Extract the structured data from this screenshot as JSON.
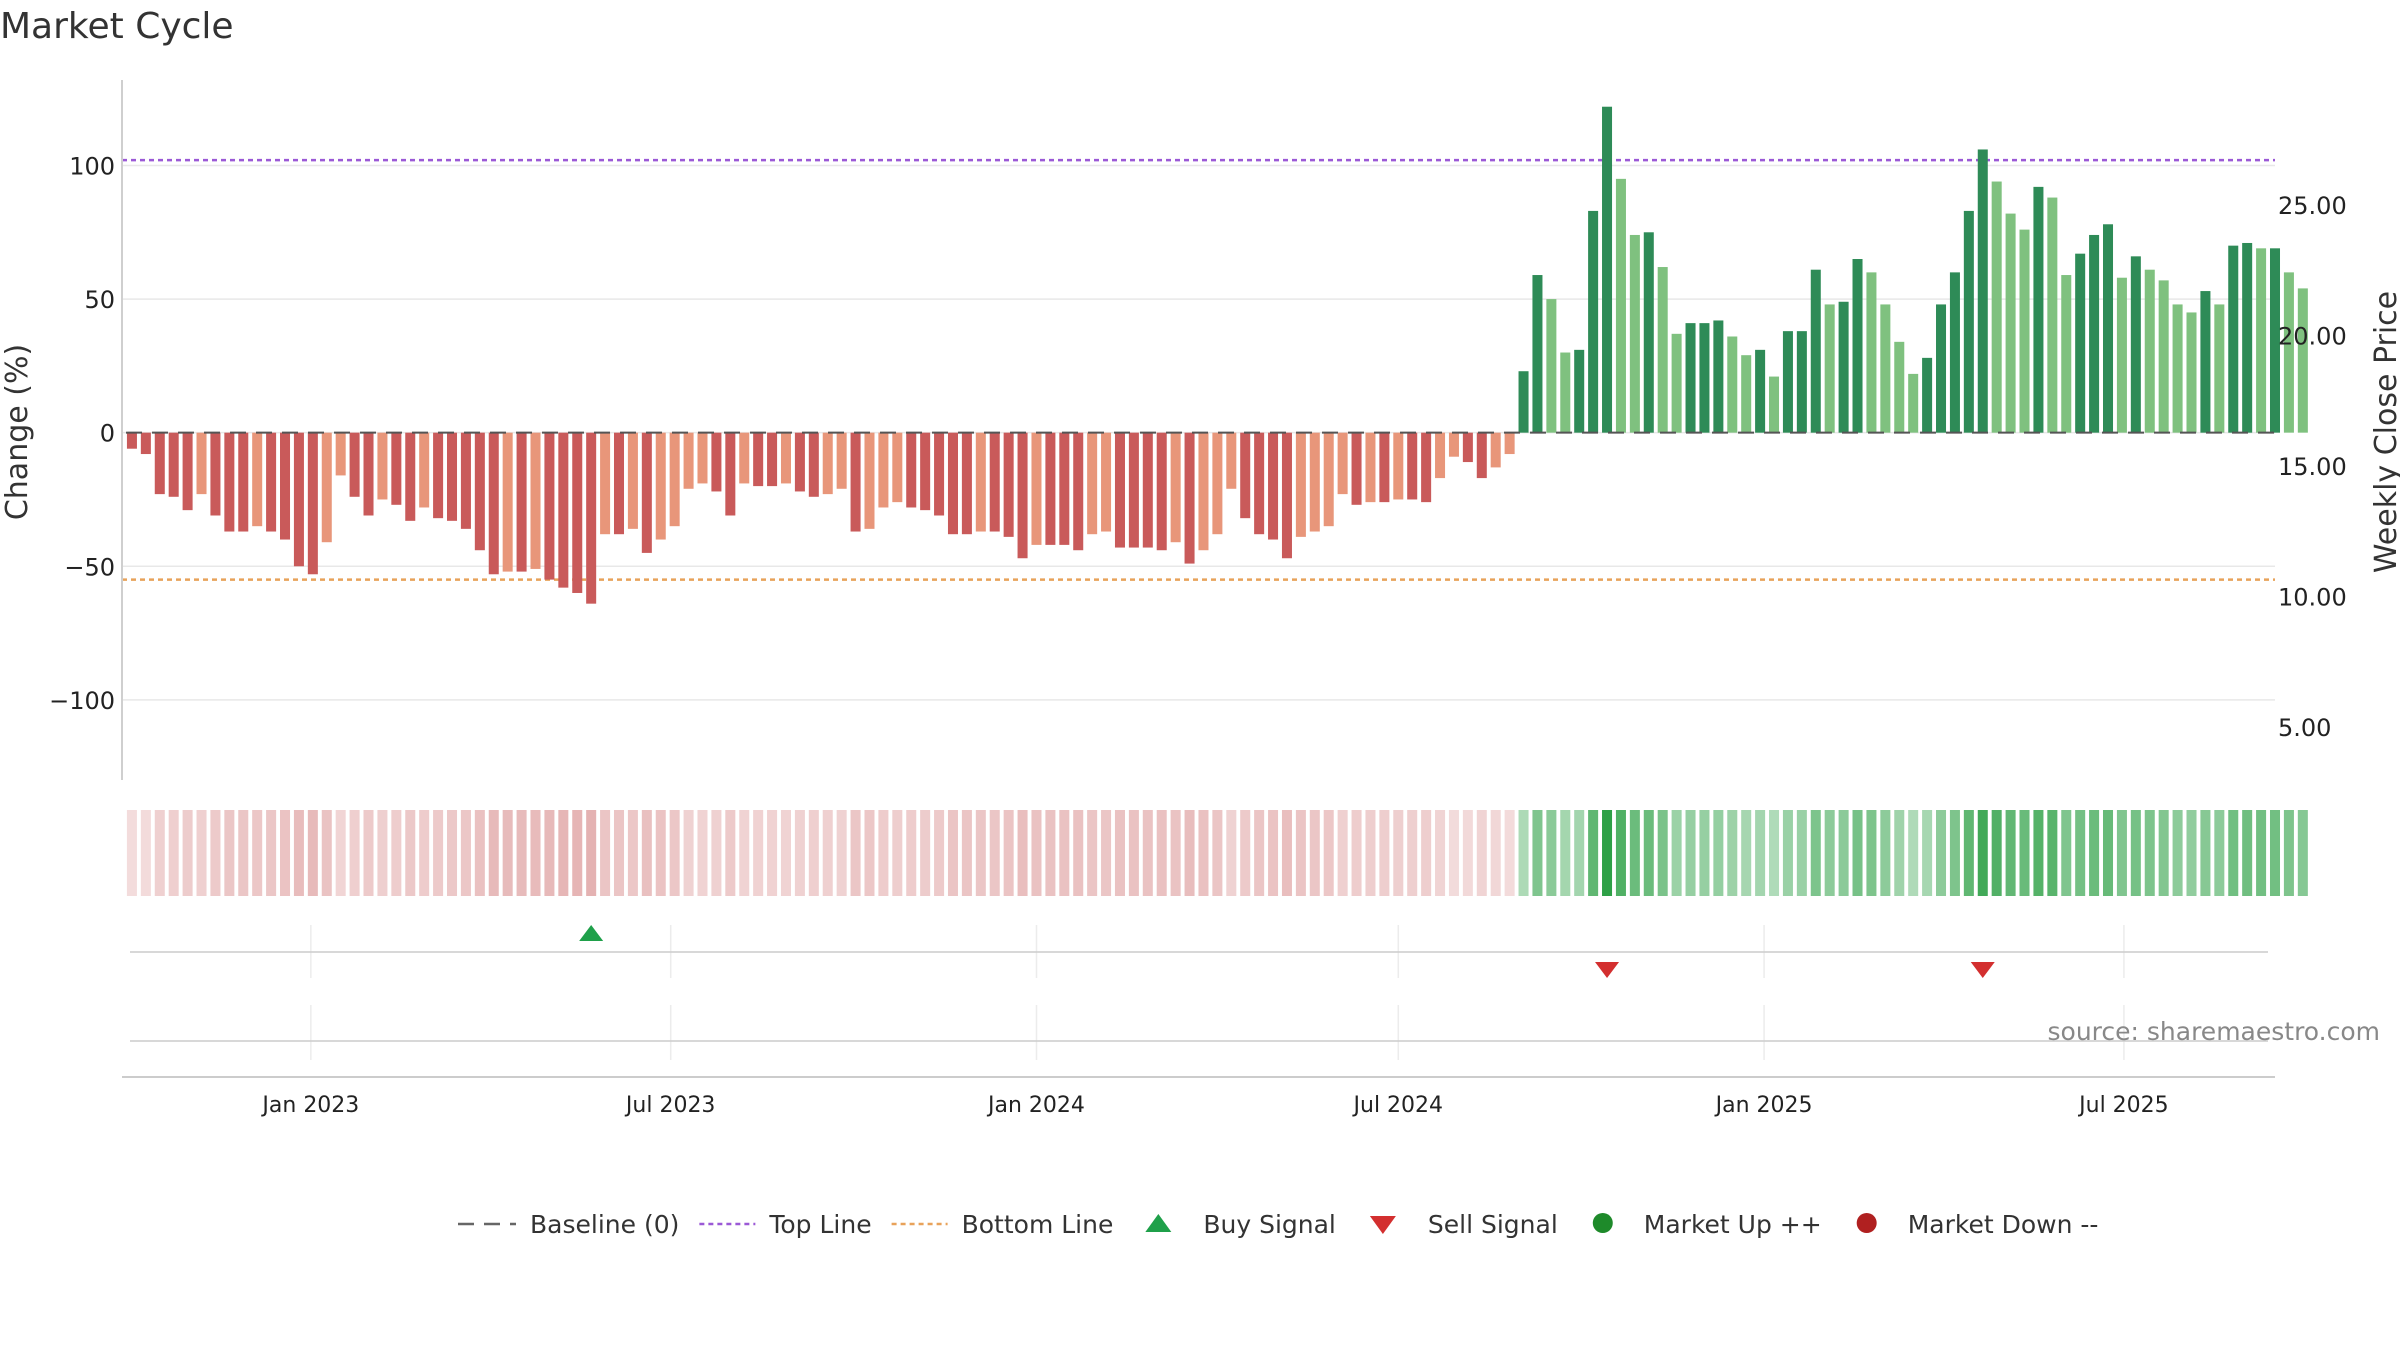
{
  "chart_data": {
    "type": "bar",
    "title": "Market Cycle",
    "ylabel": "Change (%)",
    "y2label": "Weekly Close Price",
    "source": "source: sharemaestro.com",
    "ylim": [
      -130,
      132
    ],
    "y2lim": [
      2.97,
      29.8
    ],
    "yticks": [
      {
        "v": 100,
        "label": "100"
      },
      {
        "v": 50,
        "label": "50"
      },
      {
        "v": 0,
        "label": "0"
      },
      {
        "v": -50,
        "label": "−50"
      },
      {
        "v": -100,
        "label": "−100"
      }
    ],
    "y2ticks": [
      {
        "v": 25,
        "label": "25.00"
      },
      {
        "v": 20,
        "label": "20.00"
      },
      {
        "v": 15,
        "label": "15.00"
      },
      {
        "v": 10,
        "label": "10.00"
      },
      {
        "v": 5,
        "label": "5.00"
      }
    ],
    "x_start": "2022-10-03",
    "x_step_days": 7,
    "xlim": [
      "2022-09-28",
      "2025-09-15"
    ],
    "xticks": [
      {
        "date": "2023-01-01",
        "label": "Jan 2023"
      },
      {
        "date": "2023-07-01",
        "label": "Jul 2023"
      },
      {
        "date": "2024-01-01",
        "label": "Jan 2024"
      },
      {
        "date": "2024-07-01",
        "label": "Jul 2024"
      },
      {
        "date": "2025-01-01",
        "label": "Jan 2025"
      },
      {
        "date": "2025-07-01",
        "label": "Jul 2025"
      }
    ],
    "top_line": 102,
    "bottom_line": -55,
    "grid": true,
    "legend_position": "bottom",
    "values": [
      -6,
      -8,
      -23,
      -24,
      -29,
      -23,
      -31,
      -37,
      -37,
      -35,
      -37,
      -40,
      -50,
      -53,
      -41,
      -16,
      -24,
      -31,
      -25,
      -27,
      -33,
      -28,
      -32,
      -33,
      -36,
      -44,
      -53,
      -52,
      -52,
      -51,
      -55,
      -58,
      -60,
      -64,
      -38,
      -38,
      -36,
      -45,
      -40,
      -35,
      -21,
      -19,
      -22,
      -31,
      -19,
      -20,
      -20,
      -19,
      -22,
      -24,
      -23,
      -21,
      -37,
      -36,
      -28,
      -26,
      -28,
      -29,
      -31,
      -38,
      -38,
      -37,
      -37,
      -39,
      -47,
      -42,
      -42,
      -42,
      -44,
      -38,
      -37,
      -43,
      -43,
      -43,
      -44,
      -41,
      -49,
      -44,
      -38,
      -21,
      -32,
      -38,
      -40,
      -47,
      -39,
      -37,
      -35,
      -23,
      -27,
      -26,
      -26,
      -25,
      -25,
      -26,
      -17,
      -9,
      -11,
      -17,
      -13,
      -8,
      23,
      59,
      50,
      30,
      31,
      83,
      122,
      95,
      74,
      75,
      62,
      37,
      41,
      41,
      42,
      36,
      29,
      31,
      21,
      38,
      38,
      61,
      48,
      49,
      65,
      60,
      48,
      34,
      22,
      28,
      48,
      60,
      83,
      106,
      94,
      82,
      76,
      92,
      88,
      59,
      67,
      74,
      78,
      58,
      66,
      61,
      57,
      48,
      45,
      53,
      48,
      70,
      71,
      69,
      69,
      60,
      54
    ],
    "signals": [
      {
        "type": "buy",
        "index": 33
      },
      {
        "type": "sell",
        "index": 106
      },
      {
        "type": "sell",
        "index": 133
      }
    ],
    "legend": [
      {
        "key": "baseline",
        "label": "Baseline (0)",
        "color": "#666666"
      },
      {
        "key": "top",
        "label": "Top Line",
        "color": "#9b59d6"
      },
      {
        "key": "bottom",
        "label": "Bottom Line",
        "color": "#e8a25a"
      },
      {
        "key": "buy",
        "label": "Buy Signal",
        "color": "#1fa04a"
      },
      {
        "key": "sell",
        "label": "Sell Signal",
        "color": "#d32f2f"
      },
      {
        "key": "up",
        "label": "Market Up ++",
        "color": "#1e8a2a"
      },
      {
        "key": "down",
        "label": "Market Down --",
        "color": "#b02020"
      }
    ],
    "colors": {
      "neg_dark": "#c95a5a",
      "neg_light": "#e8967a",
      "pos_dark": "#2e8b57",
      "pos_light": "#7fc17f",
      "top_line": "#9b59d6",
      "bottom_line": "#e8a25a",
      "buy": "#1fa04a",
      "sell": "#d32f2f"
    }
  }
}
